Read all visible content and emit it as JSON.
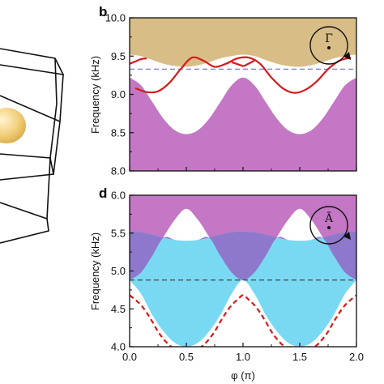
{
  "colors": {
    "upper_band": "#d9bd86",
    "lower_band": "#c377c4",
    "red_curve": "#d7191c",
    "dashed_line": "#6a6fd1",
    "cyan_band": "#7ad9f2",
    "overlap_band": "#8e78cc",
    "magenta_band": "#c377c4",
    "sphere": "#f2cf7a"
  },
  "chart_data": [
    {
      "panel": "b",
      "type": "area",
      "xlabel": "",
      "ylabel": "Frequency (kHz)",
      "xlim": [
        0,
        2.0
      ],
      "ylim": [
        8.0,
        10.0
      ],
      "yticks": [
        "8.0",
        "8.5",
        "9.0",
        "9.5",
        "10.0"
      ],
      "inset_symbol": "Γ̄",
      "dashed_level": 9.33,
      "upper_band": {
        "x": [
          0,
          0.1,
          0.2,
          0.3,
          0.4,
          0.5,
          0.6,
          0.7,
          0.8,
          0.9,
          1.0,
          1.1,
          1.2,
          1.3,
          1.4,
          1.5,
          1.6,
          1.7,
          1.8,
          1.9,
          2.0
        ],
        "y_low": [
          9.52,
          9.5,
          9.45,
          9.4,
          9.37,
          9.36,
          9.38,
          9.42,
          9.47,
          9.5,
          9.52,
          9.5,
          9.45,
          9.4,
          9.37,
          9.36,
          9.38,
          9.42,
          9.47,
          9.5,
          9.52
        ],
        "y_high": [
          9.55,
          9.62,
          9.78,
          9.92,
          10.0,
          10.0,
          10.0,
          9.92,
          9.78,
          9.62,
          9.55,
          9.62,
          9.78,
          9.92,
          10.0,
          10.0,
          10.0,
          9.92,
          9.78,
          9.62,
          9.55
        ]
      },
      "lower_band": {
        "x": [
          0,
          0.1,
          0.2,
          0.3,
          0.4,
          0.5,
          0.6,
          0.7,
          0.8,
          0.9,
          1.0,
          1.1,
          1.2,
          1.3,
          1.4,
          1.5,
          1.6,
          1.7,
          1.8,
          1.9,
          2.0
        ],
        "y_high": [
          9.22,
          9.12,
          8.9,
          8.68,
          8.53,
          8.48,
          8.53,
          8.68,
          8.9,
          9.12,
          9.22,
          9.12,
          8.9,
          8.68,
          8.53,
          8.48,
          8.53,
          8.68,
          8.9,
          9.12,
          9.22
        ]
      },
      "red_curve_segments": [
        {
          "x": [
            0,
            0.05,
            0.1,
            0.15
          ],
          "y": [
            9.4,
            9.43,
            9.46,
            9.47
          ]
        },
        {
          "x": [
            0.05,
            0.15,
            0.25,
            0.35,
            0.45,
            0.55,
            0.65,
            0.75,
            0.85,
            0.95,
            1.05,
            1.15,
            1.25,
            1.35,
            1.45,
            1.55,
            1.65,
            1.75,
            1.85,
            1.95
          ],
          "y": [
            9.08,
            9.03,
            9.04,
            9.15,
            9.33,
            9.48,
            9.44,
            9.36,
            9.4,
            9.47,
            9.48,
            9.4,
            9.22,
            9.08,
            9.02,
            9.06,
            9.17,
            9.33,
            9.44,
            9.48
          ]
        },
        {
          "x": [
            0.9,
            0.98,
            1.0,
            1.02,
            1.1
          ],
          "y": [
            9.42,
            9.38,
            9.37,
            9.38,
            9.44
          ]
        }
      ]
    },
    {
      "panel": "d",
      "type": "area",
      "xlabel": "φ (π)",
      "ylabel": "Frequency (kHz)",
      "xlim": [
        0,
        2.0
      ],
      "ylim": [
        4.0,
        6.0
      ],
      "yticks": [
        "4.0",
        "4.5",
        "5.0",
        "5.5",
        "6.0"
      ],
      "xticks": [
        "0.0",
        "0.5",
        "1.0",
        "1.5",
        "2.0"
      ],
      "inset_symbol": "Ā",
      "dashed_level": 4.88,
      "magenta_band_low": {
        "x": [
          0,
          0.1,
          0.2,
          0.3,
          0.4,
          0.5,
          0.6,
          0.7,
          0.8,
          0.9,
          1.0,
          1.1,
          1.2,
          1.3,
          1.4,
          1.5,
          1.6,
          1.7,
          1.8,
          1.9,
          2.0
        ],
        "y": [
          4.88,
          4.98,
          5.2,
          5.45,
          5.68,
          5.82,
          5.68,
          5.45,
          5.2,
          4.98,
          4.88,
          4.98,
          5.2,
          5.45,
          5.68,
          5.82,
          5.68,
          5.45,
          5.2,
          4.98,
          4.88
        ]
      },
      "cyan_band_high": {
        "x": [
          0,
          0.1,
          0.2,
          0.3,
          0.4,
          0.5,
          0.6,
          0.7,
          0.8,
          0.9,
          1.0,
          1.1,
          1.2,
          1.3,
          1.4,
          1.5,
          1.6,
          1.7,
          1.8,
          1.9,
          2.0
        ],
        "y": [
          5.52,
          5.51,
          5.48,
          5.44,
          5.41,
          5.4,
          5.41,
          5.44,
          5.48,
          5.51,
          5.52,
          5.51,
          5.48,
          5.44,
          5.41,
          5.4,
          5.41,
          5.44,
          5.48,
          5.51,
          5.52
        ]
      },
      "cyan_band_low": {
        "x": [
          0,
          0.1,
          0.2,
          0.3,
          0.4,
          0.5,
          0.6,
          0.7,
          0.8,
          0.9,
          1.0,
          1.1,
          1.2,
          1.3,
          1.4,
          1.5,
          1.6,
          1.7,
          1.8,
          1.9,
          2.0
        ],
        "y": [
          4.88,
          4.7,
          4.42,
          4.2,
          4.05,
          4.0,
          4.05,
          4.2,
          4.42,
          4.7,
          4.88,
          4.7,
          4.42,
          4.2,
          4.05,
          4.0,
          4.05,
          4.2,
          4.42,
          4.7,
          4.88
        ]
      },
      "red_dashed_curve": {
        "x": [
          0,
          0.05,
          0.1,
          0.15,
          0.2,
          0.25,
          0.3,
          0.35,
          0.4,
          0.45,
          0.5,
          0.55,
          0.6,
          0.65,
          0.7,
          0.75,
          0.8,
          0.85,
          0.9,
          0.95,
          1.0,
          1.05,
          1.1,
          1.15,
          1.2,
          1.25,
          1.3,
          1.35,
          1.4,
          1.45,
          1.5,
          1.55,
          1.6,
          1.65,
          1.7,
          1.75,
          1.8,
          1.85,
          1.9,
          1.95,
          2.0
        ],
        "y": [
          4.68,
          4.62,
          4.55,
          4.45,
          4.33,
          4.2,
          4.1,
          4.02,
          3.97,
          3.93,
          3.92,
          3.93,
          3.97,
          4.02,
          4.1,
          4.2,
          4.33,
          4.45,
          4.55,
          4.62,
          4.68,
          4.62,
          4.55,
          4.45,
          4.33,
          4.2,
          4.1,
          4.02,
          3.97,
          3.93,
          3.92,
          3.93,
          3.97,
          4.02,
          4.1,
          4.2,
          4.33,
          4.45,
          4.55,
          4.62,
          4.68
        ]
      }
    }
  ],
  "panels": {
    "b": {
      "letter": "b"
    },
    "d": {
      "letter": "d"
    }
  }
}
